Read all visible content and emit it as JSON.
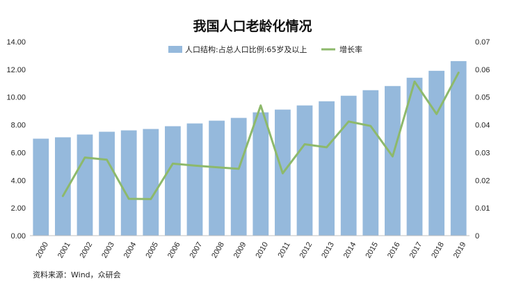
{
  "chart_data": {
    "type": "bar",
    "title": "我国人口老龄化情况",
    "categories": [
      "2000",
      "2001",
      "2002",
      "2003",
      "2004",
      "2005",
      "2006",
      "2007",
      "2008",
      "2009",
      "2010",
      "2011",
      "2012",
      "2013",
      "2014",
      "2015",
      "2016",
      "2017",
      "2018",
      "2019"
    ],
    "series": [
      {
        "name": "人口结构:占总人口比例:65岁及以上",
        "type": "bar",
        "axis": "left",
        "color": "#95b9dc",
        "values": [
          7.0,
          7.1,
          7.3,
          7.5,
          7.6,
          7.7,
          7.9,
          8.1,
          8.3,
          8.5,
          8.9,
          9.1,
          9.4,
          9.7,
          10.1,
          10.5,
          10.8,
          11.4,
          11.9,
          12.6
        ]
      },
      {
        "name": "增长率",
        "type": "line",
        "axis": "right",
        "color": "#8db96b",
        "values": [
          null,
          0.0143,
          0.0282,
          0.0274,
          0.0133,
          0.0132,
          0.026,
          0.0253,
          0.0247,
          0.0241,
          0.047,
          0.0225,
          0.033,
          0.0319,
          0.0412,
          0.0396,
          0.0286,
          0.0556,
          0.0439,
          0.0588
        ]
      }
    ],
    "y_left": {
      "ylim": [
        0,
        14
      ],
      "ticks": [
        "0.00",
        "2.00",
        "4.00",
        "6.00",
        "8.00",
        "10.00",
        "12.00",
        "14.00"
      ]
    },
    "y_right": {
      "ylim": [
        0,
        0.07
      ],
      "ticks": [
        "0",
        "0.01",
        "0.02",
        "0.03",
        "0.04",
        "0.05",
        "0.06",
        "0.07"
      ]
    },
    "legend_position": "top-center",
    "grid": false,
    "source": "资料来源：Wind，众研会"
  }
}
